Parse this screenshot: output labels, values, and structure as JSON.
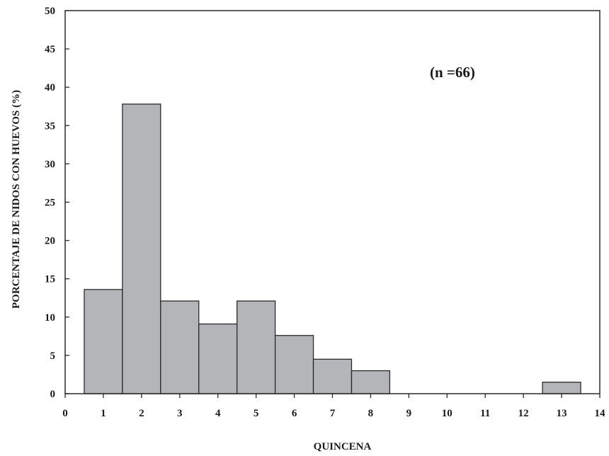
{
  "chart_data": {
    "type": "bar",
    "xlabel": "QUINCENA",
    "ylabel": "PORCENTAJE DE NIDOS CON HUEVOS (%)",
    "annotation": "(n =66)",
    "xlim": [
      0,
      14
    ],
    "ylim": [
      0,
      50
    ],
    "xticks": [
      0,
      1,
      2,
      3,
      4,
      5,
      6,
      7,
      8,
      9,
      10,
      11,
      12,
      13,
      14
    ],
    "yticks": [
      0,
      5,
      10,
      15,
      20,
      25,
      30,
      35,
      40,
      45,
      50
    ],
    "categories": [
      1,
      2,
      3,
      4,
      5,
      6,
      7,
      8,
      13
    ],
    "values": [
      13.6,
      37.8,
      12.1,
      9.1,
      12.1,
      7.6,
      4.5,
      3.0,
      1.5
    ],
    "bar_color": "#b4b5b9",
    "edge_color": "#2a2a2a",
    "grid": false
  }
}
